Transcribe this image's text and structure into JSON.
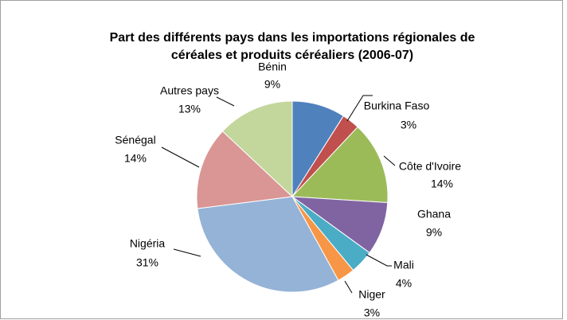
{
  "chart_data": {
    "type": "pie",
    "title": [
      "Part des différents pays dans les importations régionales de",
      "céréales et produits céréaliers (2006-07)"
    ],
    "categories": [
      "Bénin",
      "Burkina Faso",
      "Côte d'Ivoire",
      "Ghana",
      "Mali",
      "Niger",
      "Nigéria",
      "Sénégal",
      "Autres pays"
    ],
    "values": [
      9,
      3,
      14,
      9,
      4,
      3,
      31,
      14,
      13
    ],
    "value_labels": [
      "9%",
      "3%",
      "14%",
      "9%",
      "4%",
      "3%",
      "31%",
      "14%",
      "13%"
    ],
    "colors": [
      "#4f81bd",
      "#c0504d",
      "#9bbb59",
      "#8064a2",
      "#4bacc6",
      "#f79646",
      "#95b3d7",
      "#d99694",
      "#c3d69b"
    ]
  }
}
